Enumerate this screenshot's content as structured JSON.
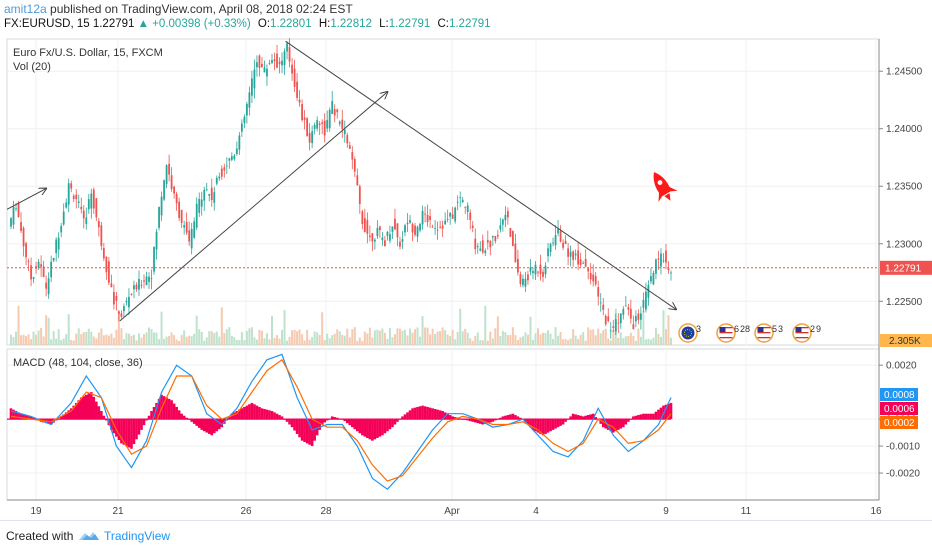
{
  "header": {
    "user": "amit12a",
    "published": "published on TradingView.com, April 08, 2018 02:24 EST",
    "symbol": "FX:EURUSD, 15",
    "last": "1.22791",
    "change": "+0.00398 (+0.33%)",
    "open_label": "O:",
    "open": "1.22801",
    "high_label": "H:",
    "high": "1.22812",
    "low_label": "L:",
    "low": "1.22791",
    "close_label": "C:",
    "close": "1.22791"
  },
  "footer": {
    "created_with": "Created with",
    "brand": "TradingView"
  },
  "colors": {
    "up": "#26a69a",
    "down": "#ef5350",
    "macd_line": "#2196f3",
    "signal_line": "#ff6d00",
    "histogram": "#f50057",
    "last_price": "#ef5350",
    "rocket": "#ff0000"
  },
  "icons": [
    "rocket-icon",
    "event-flag-eu-icon",
    "event-flag-us-icon",
    "tradingview-logo-icon"
  ],
  "chart_data": [
    {
      "type": "candlestick",
      "title": "Euro Fx/U.S. Dollar, 15, FXCM",
      "indicator_label": "Vol (20)",
      "y_ticks": [
        1.245,
        1.24,
        1.235,
        1.23,
        1.225
      ],
      "y_tick_labels": [
        "1.24500",
        "1.24000",
        "1.23500",
        "1.23000",
        "1.22500"
      ],
      "ylim": [
        1.2212,
        1.2478
      ],
      "x_ticks": [
        "19",
        "21",
        "26",
        "28",
        "Apr",
        "4",
        "9",
        "11",
        "16"
      ],
      "last_price": 1.22791,
      "last_price_label": "1.22791",
      "volume_label": "2.305K",
      "price_path": [
        [
          0,
          1.2315
        ],
        [
          3,
          1.2335
        ],
        [
          6,
          1.23
        ],
        [
          9,
          1.227
        ],
        [
          12,
          1.2285
        ],
        [
          15,
          1.2262
        ],
        [
          18,
          1.229
        ],
        [
          21,
          1.232
        ],
        [
          24,
          1.235
        ],
        [
          27,
          1.234
        ],
        [
          30,
          1.2318
        ],
        [
          33,
          1.2345
        ],
        [
          36,
          1.2312
        ],
        [
          39,
          1.228
        ],
        [
          42,
          1.225
        ],
        [
          45,
          1.2238
        ],
        [
          48,
          1.2255
        ],
        [
          51,
          1.2262
        ],
        [
          54,
          1.227
        ],
        [
          57,
          1.2275
        ],
        [
          60,
          1.233
        ],
        [
          63,
          1.237
        ],
        [
          66,
          1.234
        ],
        [
          69,
          1.232
        ],
        [
          72,
          1.23
        ],
        [
          75,
          1.233
        ],
        [
          78,
          1.235
        ],
        [
          81,
          1.234
        ],
        [
          84,
          1.236
        ],
        [
          87,
          1.237
        ],
        [
          90,
          1.238
        ],
        [
          93,
          1.24
        ],
        [
          96,
          1.243
        ],
        [
          99,
          1.246
        ],
        [
          102,
          1.245
        ],
        [
          105,
          1.2462
        ],
        [
          108,
          1.2455
        ],
        [
          111,
          1.247
        ],
        [
          114,
          1.244
        ],
        [
          117,
          1.241
        ],
        [
          120,
          1.239
        ],
        [
          123,
          1.241
        ],
        [
          126,
          1.2398
        ],
        [
          129,
          1.242
        ],
        [
          132,
          1.2405
        ],
        [
          135,
          1.239
        ],
        [
          138,
          1.236
        ],
        [
          141,
          1.232
        ],
        [
          144,
          1.2305
        ],
        [
          147,
          1.231
        ],
        [
          150,
          1.2302
        ],
        [
          153,
          1.2318
        ],
        [
          156,
          1.23
        ],
        [
          159,
          1.232
        ],
        [
          162,
          1.2312
        ],
        [
          165,
          1.2325
        ],
        [
          168,
          1.232
        ],
        [
          171,
          1.2315
        ],
        [
          174,
          1.2318
        ],
        [
          177,
          1.2325
        ],
        [
          180,
          1.234
        ],
        [
          183,
          1.233
        ],
        [
          186,
          1.23
        ],
        [
          189,
          1.2296
        ],
        [
          192,
          1.23
        ],
        [
          195,
          1.231
        ],
        [
          198,
          1.233
        ],
        [
          201,
          1.2295
        ],
        [
          204,
          1.2265
        ],
        [
          207,
          1.2272
        ],
        [
          210,
          1.228
        ],
        [
          213,
          1.2275
        ],
        [
          216,
          1.23
        ],
        [
          219,
          1.231
        ],
        [
          222,
          1.2295
        ],
        [
          225,
          1.229
        ],
        [
          228,
          1.2285
        ],
        [
          231,
          1.228
        ],
        [
          234,
          1.226
        ],
        [
          237,
          1.224
        ],
        [
          240,
          1.2225
        ],
        [
          243,
          1.2235
        ],
        [
          246,
          1.2245
        ],
        [
          249,
          1.223
        ],
        [
          252,
          1.224
        ],
        [
          255,
          1.2262
        ],
        [
          258,
          1.2282
        ],
        [
          261,
          1.229
        ],
        [
          263,
          1.2279
        ]
      ],
      "series": [
        {
          "name": "",
          "kind": "line",
          "points": [
            [
              263,
              1.2279
            ]
          ]
        }
      ],
      "trendlines": [
        {
          "x1": 0,
          "y1": 1.233,
          "x2": 14,
          "y2": 1.2348,
          "arrow": true
        },
        {
          "x1": 45,
          "y1": 1.2233,
          "x2": 150,
          "y2": 1.2432,
          "arrow": true
        },
        {
          "x1": 111,
          "y1": 1.2476,
          "x2": 265,
          "y2": 1.2243,
          "arrow": true
        }
      ],
      "events": [
        {
          "flag": "eu",
          "count": "3",
          "x": 273
        },
        {
          "flag": "us",
          "count": "6",
          "extra": "28",
          "x": 291
        },
        {
          "flag": "us",
          "count": "5",
          "extra": "3",
          "x": 309
        },
        {
          "flag": "us",
          "count": "2",
          "extra": "9",
          "x": 326
        }
      ]
    },
    {
      "type": "line",
      "title": "MACD (48, 104, close, 36)",
      "y_ticks": [
        0.002,
        0.0,
        -0.001,
        -0.002
      ],
      "y_tick_labels": [
        "0.0020",
        "0.0000",
        "-0.0010",
        "-0.0020"
      ],
      "ylim": [
        -0.003,
        0.0026
      ],
      "markers": [
        {
          "label": "0.0008",
          "value": 0.0008,
          "color": "#2196f3"
        },
        {
          "label": "0.0006",
          "value": 0.0006,
          "color": "#f50057"
        },
        {
          "label": "0.0002",
          "value": 0.0002,
          "color": "#ff6d00"
        }
      ],
      "series": [
        {
          "name": "",
          "color": "#2196f3",
          "values_at": [
            [
              0,
              0.0003
            ],
            [
              8,
              0.0001
            ],
            [
              16,
              -0.0002
            ],
            [
              24,
              0.0006
            ],
            [
              30,
              0.0016
            ],
            [
              36,
              0.0008
            ],
            [
              42,
              -0.001
            ],
            [
              48,
              -0.0018
            ],
            [
              54,
              -0.0008
            ],
            [
              60,
              0.001
            ],
            [
              66,
              0.002
            ],
            [
              72,
              0.0016
            ],
            [
              78,
              0.0002
            ],
            [
              84,
              -0.0002
            ],
            [
              90,
              0.0004
            ],
            [
              96,
              0.0014
            ],
            [
              102,
              0.0022
            ],
            [
              108,
              0.0024
            ],
            [
              114,
              0.0008
            ],
            [
              120,
              -0.0004
            ],
            [
              126,
              -0.0002
            ],
            [
              132,
              -0.0002
            ],
            [
              138,
              -0.001
            ],
            [
              144,
              -0.0022
            ],
            [
              150,
              -0.0026
            ],
            [
              156,
              -0.002
            ],
            [
              162,
              -0.0012
            ],
            [
              168,
              -0.0004
            ],
            [
              174,
              0.0002
            ],
            [
              180,
              0.0002
            ],
            [
              186,
              0.0
            ],
            [
              192,
              -0.0003
            ],
            [
              198,
              -0.0002
            ],
            [
              204,
              0.0
            ],
            [
              210,
              -0.0006
            ],
            [
              216,
              -0.0012
            ],
            [
              222,
              -0.0014
            ],
            [
              228,
              -0.0008
            ],
            [
              234,
              0.0004
            ],
            [
              240,
              -0.0006
            ],
            [
              246,
              -0.0012
            ],
            [
              252,
              -0.0008
            ],
            [
              258,
              -0.0002
            ],
            [
              263,
              0.0008
            ]
          ]
        },
        {
          "name": "",
          "color": "#ff6d00",
          "values_at": [
            [
              0,
              0.0001
            ],
            [
              8,
              0.0
            ],
            [
              16,
              -0.0001
            ],
            [
              24,
              0.0003
            ],
            [
              30,
              0.001
            ],
            [
              36,
              0.0008
            ],
            [
              42,
              -0.0004
            ],
            [
              48,
              -0.0013
            ],
            [
              54,
              -0.001
            ],
            [
              60,
              0.0004
            ],
            [
              66,
              0.0016
            ],
            [
              72,
              0.0016
            ],
            [
              78,
              0.0005
            ],
            [
              84,
              0.0
            ],
            [
              90,
              0.0002
            ],
            [
              96,
              0.001
            ],
            [
              102,
              0.0018
            ],
            [
              108,
              0.0022
            ],
            [
              114,
              0.0012
            ],
            [
              120,
              0.0
            ],
            [
              126,
              -0.0003
            ],
            [
              132,
              -0.0003
            ],
            [
              138,
              -0.0008
            ],
            [
              144,
              -0.0017
            ],
            [
              150,
              -0.0023
            ],
            [
              156,
              -0.0021
            ],
            [
              162,
              -0.0014
            ],
            [
              168,
              -0.0007
            ],
            [
              174,
              -0.0001
            ],
            [
              180,
              0.0001
            ],
            [
              186,
              0.0
            ],
            [
              192,
              -0.0002
            ],
            [
              198,
              -0.0002
            ],
            [
              204,
              -0.0001
            ],
            [
              210,
              -0.0004
            ],
            [
              216,
              -0.0009
            ],
            [
              222,
              -0.0012
            ],
            [
              228,
              -0.0009
            ],
            [
              234,
              0.0
            ],
            [
              240,
              -0.0003
            ],
            [
              246,
              -0.0009
            ],
            [
              252,
              -0.0008
            ],
            [
              258,
              -0.0004
            ],
            [
              263,
              0.0002
            ]
          ]
        }
      ],
      "histogram": [
        [
          0,
          0.0004
        ],
        [
          4,
          0.0002
        ],
        [
          8,
          0.0001
        ],
        [
          12,
          -0.0001
        ],
        [
          16,
          -0.0002
        ],
        [
          20,
          0.0001
        ],
        [
          24,
          0.0004
        ],
        [
          28,
          0.0008
        ],
        [
          32,
          0.001
        ],
        [
          36,
          0.0003
        ],
        [
          40,
          -0.0004
        ],
        [
          44,
          -0.0009
        ],
        [
          48,
          -0.0011
        ],
        [
          52,
          -0.0004
        ],
        [
          56,
          0.0003
        ],
        [
          60,
          0.0009
        ],
        [
          64,
          0.0007
        ],
        [
          68,
          0.0002
        ],
        [
          72,
          -0.0001
        ],
        [
          76,
          -0.0004
        ],
        [
          80,
          -0.0006
        ],
        [
          84,
          -0.0003
        ],
        [
          88,
          0.0002
        ],
        [
          92,
          0.0004
        ],
        [
          96,
          0.0006
        ],
        [
          100,
          0.0004
        ],
        [
          104,
          0.0003
        ],
        [
          108,
          0.0001
        ],
        [
          112,
          -0.0003
        ],
        [
          116,
          -0.0008
        ],
        [
          120,
          -0.001
        ],
        [
          124,
          -0.0002
        ],
        [
          128,
          0.0001
        ],
        [
          132,
          0.0
        ],
        [
          136,
          -0.0003
        ],
        [
          140,
          -0.0006
        ],
        [
          144,
          -0.0008
        ],
        [
          148,
          -0.0006
        ],
        [
          152,
          -0.0003
        ],
        [
          156,
          0.0001
        ],
        [
          160,
          0.0004
        ],
        [
          164,
          0.0005
        ],
        [
          168,
          0.0004
        ],
        [
          172,
          0.0003
        ],
        [
          176,
          0.0001
        ],
        [
          180,
          0.0
        ],
        [
          184,
          -0.0001
        ],
        [
          188,
          -0.0002
        ],
        [
          192,
          -0.0001
        ],
        [
          196,
          0.0001
        ],
        [
          200,
          0.0002
        ],
        [
          204,
          0.0
        ],
        [
          208,
          -0.0004
        ],
        [
          212,
          -0.0006
        ],
        [
          216,
          -0.0004
        ],
        [
          220,
          -0.0002
        ],
        [
          224,
          0.0002
        ],
        [
          228,
          0.0001
        ],
        [
          232,
          0.0002
        ],
        [
          236,
          -0.0003
        ],
        [
          240,
          -0.0005
        ],
        [
          244,
          -0.0003
        ],
        [
          248,
          0.0001
        ],
        [
          252,
          0.0002
        ],
        [
          256,
          0.0002
        ],
        [
          260,
          0.0005
        ],
        [
          263,
          0.0006
        ]
      ]
    }
  ]
}
